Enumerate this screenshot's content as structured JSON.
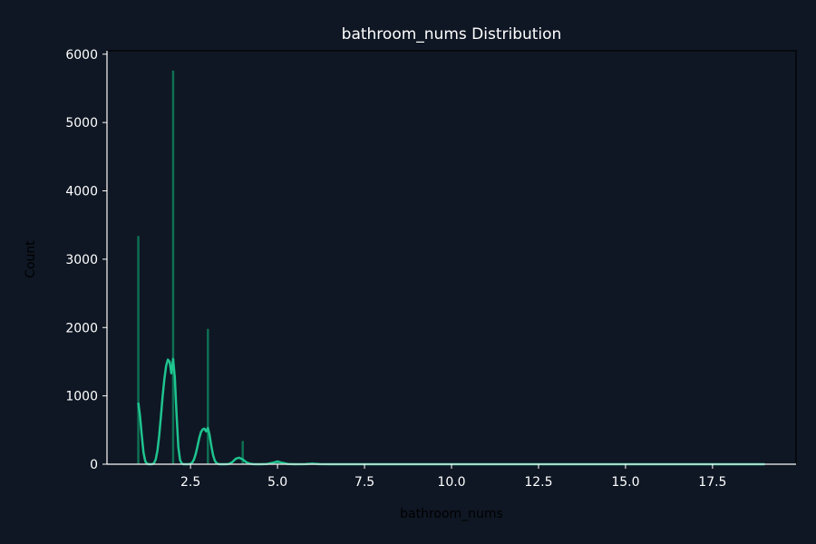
{
  "chart_data": {
    "type": "bar",
    "title": "bathroom_nums Distribution",
    "xlabel": "bathroom_nums",
    "ylabel": "Count",
    "xlim": [
      0.1,
      19.9
    ],
    "ylim": [
      0,
      6050
    ],
    "x_ticks": [
      2.5,
      5.0,
      7.5,
      10.0,
      12.5,
      15.0,
      17.5
    ],
    "x_tick_labels": [
      "2.5",
      "5.0",
      "7.5",
      "10.0",
      "12.5",
      "15.0",
      "17.5"
    ],
    "y_ticks": [
      0,
      1000,
      2000,
      3000,
      4000,
      5000,
      6000
    ],
    "y_tick_labels": [
      "0",
      "1000",
      "2000",
      "3000",
      "4000",
      "5000",
      "6000"
    ],
    "grid": false,
    "legend": false,
    "colors": {
      "background": "#0f1724",
      "bars": "#0e6f52",
      "kde": "#1fc48f",
      "axes": "#ffffff",
      "text": "#ffffff"
    },
    "series": [
      {
        "kind": "histogram",
        "x": [
          1,
          2,
          3,
          4,
          5,
          6,
          7,
          8,
          9
        ],
        "values": [
          3340,
          5760,
          1980,
          340,
          50,
          15,
          5,
          3,
          2
        ]
      },
      {
        "kind": "kde",
        "x": [
          1.0,
          1.05,
          1.1,
          1.15,
          1.2,
          1.25,
          1.3,
          1.35,
          1.4,
          1.45,
          1.5,
          1.55,
          1.6,
          1.65,
          1.7,
          1.75,
          1.8,
          1.85,
          1.9,
          1.95,
          2.0,
          2.05,
          2.1,
          2.15,
          2.2,
          2.25,
          2.3,
          2.35,
          2.4,
          2.45,
          2.5,
          2.55,
          2.6,
          2.65,
          2.7,
          2.75,
          2.8,
          2.85,
          2.9,
          2.95,
          3.0,
          3.05,
          3.1,
          3.15,
          3.2,
          3.25,
          3.3,
          3.35,
          3.4,
          3.5,
          3.6,
          3.7,
          3.8,
          3.9,
          4.0,
          4.1,
          4.2,
          4.3,
          4.4,
          4.5,
          4.7,
          4.9,
          5.0,
          5.1,
          5.3,
          5.5,
          5.8,
          6.0,
          6.2,
          6.5,
          7.0,
          8.0,
          9.0,
          10.0,
          12.0,
          14.0,
          16.0,
          18.0,
          19.0
        ],
        "values": [
          900,
          700,
          420,
          170,
          45,
          8,
          0,
          0,
          2,
          15,
          70,
          200,
          420,
          700,
          1000,
          1250,
          1440,
          1530,
          1500,
          1330,
          1540,
          1260,
          720,
          250,
          60,
          10,
          0,
          0,
          0,
          1,
          5,
          25,
          70,
          150,
          260,
          380,
          470,
          510,
          520,
          480,
          530,
          420,
          260,
          130,
          50,
          15,
          3,
          0,
          0,
          0,
          3,
          30,
          80,
          95,
          70,
          30,
          8,
          1,
          0,
          0,
          3,
          25,
          40,
          25,
          3,
          0,
          2,
          8,
          2,
          0,
          0,
          0,
          0,
          0,
          0,
          0,
          0,
          0,
          0
        ]
      }
    ]
  }
}
